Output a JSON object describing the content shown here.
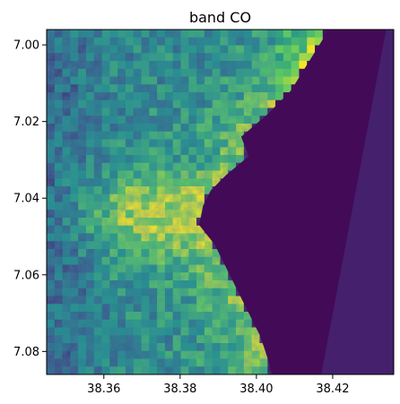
{
  "chart_data": {
    "type": "heatmap",
    "title": "band CO",
    "xlabel": "",
    "ylabel": "",
    "x_ticks": [
      "38.36",
      "38.38",
      "38.40",
      "38.42"
    ],
    "y_ticks": [
      "7.00",
      "7.02",
      "7.04",
      "7.06",
      "7.08"
    ],
    "x_tick_values": [
      38.36,
      38.38,
      38.4,
      38.42
    ],
    "y_tick_values": [
      7.0,
      7.02,
      7.04,
      7.06,
      7.08
    ],
    "xlim": [
      38.345,
      38.436
    ],
    "ylim": [
      7.086,
      6.996
    ],
    "colormap": "viridis",
    "value_range": [
      0,
      1
    ],
    "coastline_lon_by_lat": [
      [
        6.996,
        38.419
      ],
      [
        7.004,
        38.414
      ],
      [
        7.012,
        38.409
      ],
      [
        7.018,
        38.403
      ],
      [
        7.024,
        38.396
      ],
      [
        7.029,
        38.398
      ],
      [
        7.034,
        38.392
      ],
      [
        7.038,
        38.388
      ],
      [
        7.042,
        38.386
      ],
      [
        7.047,
        38.385
      ],
      [
        7.052,
        38.389
      ],
      [
        7.058,
        38.392
      ],
      [
        7.064,
        38.395
      ],
      [
        7.07,
        38.398
      ],
      [
        7.076,
        38.401
      ],
      [
        7.082,
        38.403
      ],
      [
        7.086,
        38.404
      ]
    ]
  },
  "colors": {
    "axis": "#000000",
    "background": "#ffffff"
  }
}
